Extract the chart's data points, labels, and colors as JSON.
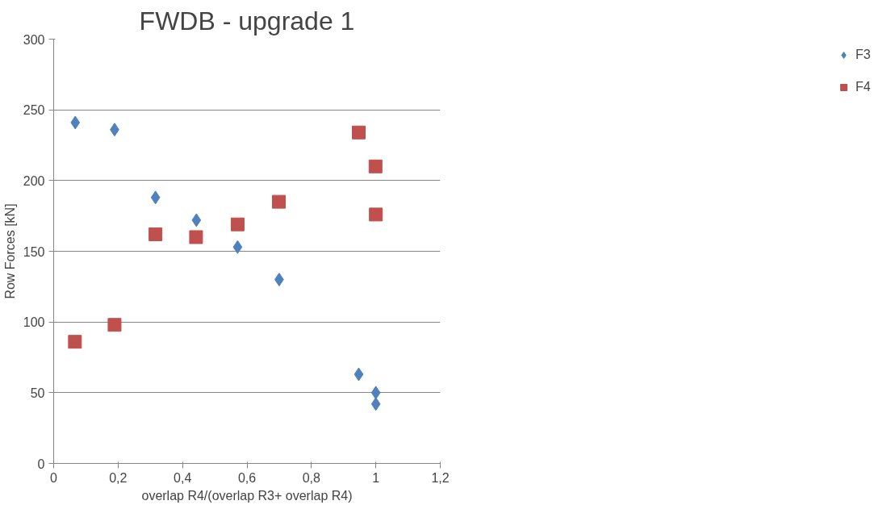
{
  "chart_data": {
    "type": "scatter",
    "title": "FWDB - upgrade 1",
    "xlabel": "overlap R4/(overlap R3+ overlap R4)",
    "ylabel": "Row Forces [kN]",
    "xlim": [
      0,
      1.2
    ],
    "xticks": [
      0,
      {
        "value": 0.2,
        "label": "0,2"
      },
      {
        "value": 0.4,
        "label": "0,4"
      },
      {
        "value": 0.6,
        "label": "0,6"
      },
      {
        "value": 0.8,
        "label": "0,8"
      },
      1,
      {
        "value": 1.2,
        "label": "1,2"
      }
    ],
    "ylim": [
      0,
      300
    ],
    "yticks": [
      0,
      50,
      100,
      150,
      200,
      250,
      300
    ],
    "grid": "y",
    "legend": "right",
    "series": [
      {
        "name": "F3",
        "color": "#4f81bd",
        "marker": "diamond",
        "x": [
          0.067,
          0.189,
          0.316,
          0.443,
          0.571,
          0.7,
          0.947,
          1.0,
          1.0
        ],
        "values": [
          241,
          236,
          188,
          172,
          153,
          130,
          63,
          50,
          42
        ]
      },
      {
        "name": "F4",
        "color": "#c0504d",
        "marker": "square",
        "x": [
          0.066,
          0.189,
          0.316,
          0.442,
          0.571,
          0.699,
          0.947,
          0.999,
          1.0
        ],
        "values": [
          86,
          98,
          162,
          160,
          169,
          185,
          234,
          210,
          176
        ]
      }
    ]
  }
}
